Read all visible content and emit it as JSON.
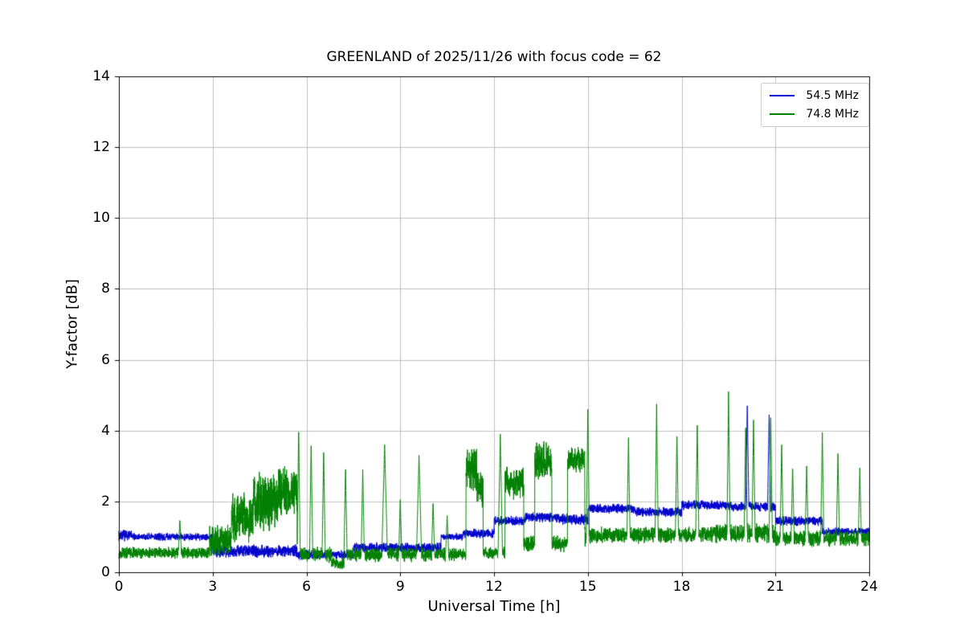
{
  "chart_data": {
    "type": "line",
    "title": "GREENLAND of 2025/11/26 with focus code = 62",
    "xlabel": "Universal Time [h]",
    "ylabel": "Y-factor [dB]",
    "xlim": [
      0,
      24
    ],
    "ylim": [
      0,
      14
    ],
    "xticks": [
      0,
      3,
      6,
      9,
      12,
      15,
      18,
      21,
      24
    ],
    "yticks": [
      0,
      2,
      4,
      6,
      8,
      10,
      12,
      14
    ],
    "grid": true,
    "grid_color": "#b0b0b0",
    "legend_position": "upper right",
    "series": [
      {
        "name": "54.5 MHz",
        "color": "#0000cc",
        "baseline_segments": [
          [
            0.0,
            0.4,
            1.05,
            0.18
          ],
          [
            0.4,
            3.0,
            1.0,
            0.12
          ],
          [
            3.0,
            5.7,
            0.6,
            0.2
          ],
          [
            5.7,
            7.5,
            0.5,
            0.15
          ],
          [
            7.5,
            10.3,
            0.7,
            0.15
          ],
          [
            10.3,
            11.0,
            1.0,
            0.12
          ],
          [
            11.0,
            12.0,
            1.1,
            0.15
          ],
          [
            12.0,
            13.0,
            1.45,
            0.15
          ],
          [
            13.0,
            14.0,
            1.55,
            0.15
          ],
          [
            14.0,
            15.0,
            1.5,
            0.18
          ],
          [
            15.0,
            16.5,
            1.8,
            0.15
          ],
          [
            16.5,
            18.0,
            1.7,
            0.15
          ],
          [
            18.0,
            19.5,
            1.9,
            0.15
          ],
          [
            19.5,
            21.0,
            1.85,
            0.15
          ],
          [
            21.0,
            22.5,
            1.45,
            0.15
          ],
          [
            22.5,
            24.0,
            1.15,
            0.12
          ]
        ],
        "spikes": [
          [
            20.1,
            4.7
          ],
          [
            20.8,
            4.45
          ]
        ]
      },
      {
        "name": "74.8 MHz",
        "color": "#008000",
        "baseline_segments": [
          [
            0.0,
            2.9,
            0.55,
            0.18
          ],
          [
            2.9,
            3.6,
            0.9,
            0.5
          ],
          [
            3.6,
            4.3,
            1.5,
            0.8
          ],
          [
            4.3,
            5.1,
            2.0,
            0.9
          ],
          [
            5.1,
            5.7,
            2.3,
            0.8
          ],
          [
            5.7,
            6.8,
            0.5,
            0.25
          ],
          [
            6.8,
            7.2,
            0.25,
            0.2
          ],
          [
            7.2,
            11.1,
            0.5,
            0.22
          ],
          [
            11.1,
            11.45,
            2.9,
            0.7
          ],
          [
            11.45,
            11.65,
            2.4,
            0.6
          ],
          [
            11.65,
            12.35,
            0.55,
            0.2
          ],
          [
            12.35,
            12.95,
            2.5,
            0.5
          ],
          [
            12.95,
            13.3,
            0.8,
            0.25
          ],
          [
            13.3,
            13.85,
            3.1,
            0.6
          ],
          [
            13.85,
            14.35,
            0.8,
            0.25
          ],
          [
            14.35,
            14.9,
            3.2,
            0.4
          ],
          [
            14.9,
            15.1,
            1.0,
            0.3
          ],
          [
            15.1,
            19.0,
            1.05,
            0.25
          ],
          [
            19.0,
            21.0,
            1.1,
            0.3
          ],
          [
            21.0,
            24.0,
            0.95,
            0.25
          ]
        ],
        "spikes": [
          [
            1.95,
            1.5
          ],
          [
            5.75,
            4.1
          ],
          [
            6.15,
            3.7
          ],
          [
            6.55,
            3.5
          ],
          [
            7.25,
            3.0
          ],
          [
            7.8,
            2.9
          ],
          [
            8.5,
            3.6,
            0.09
          ],
          [
            9.0,
            2.05
          ],
          [
            9.6,
            3.3,
            0.08
          ],
          [
            10.05,
            2.0
          ],
          [
            10.5,
            1.6
          ],
          [
            12.2,
            3.9,
            0.07
          ],
          [
            15.0,
            4.6
          ],
          [
            16.3,
            3.8
          ],
          [
            17.2,
            4.75
          ],
          [
            17.85,
            3.95
          ],
          [
            18.5,
            4.15
          ],
          [
            19.5,
            5.1
          ],
          [
            20.05,
            4.2
          ],
          [
            20.3,
            4.3
          ],
          [
            20.85,
            4.5
          ],
          [
            21.2,
            3.6
          ],
          [
            21.55,
            3.0
          ],
          [
            22.0,
            3.0
          ],
          [
            22.5,
            3.95
          ],
          [
            23.0,
            3.35
          ],
          [
            23.7,
            2.95
          ]
        ]
      }
    ]
  }
}
